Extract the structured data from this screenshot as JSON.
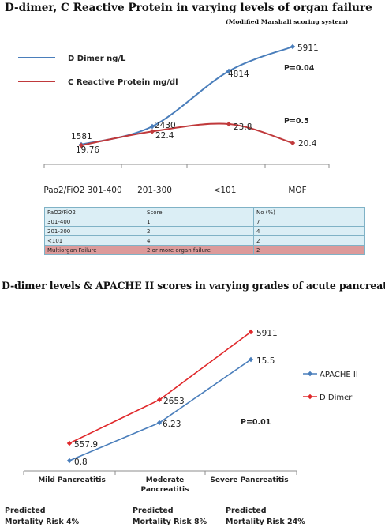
{
  "chart1": {
    "title": "D-dimer, C Reactive Protein in varying levels of organ failure",
    "subtitle": "(Modified Marshall scoring system)",
    "categories": [
      "Pao2/FiO2 301-400",
      "201-300",
      "<101",
      "MOF"
    ],
    "series": [
      {
        "name": "D Dimer ng/L",
        "color": "#4a7ebb",
        "values": [
          1581,
          2430,
          4814,
          5911
        ],
        "labels": [
          "1581",
          "2430",
          "4814",
          "5911"
        ]
      },
      {
        "name": "C Reactive Protein mg/dl",
        "color": "#c0393b",
        "values": [
          19.76,
          22.4,
          23.8,
          20.4
        ],
        "labels": [
          "19.76",
          "22.4",
          "23.8",
          "20.4"
        ]
      }
    ],
    "p_values": [
      "P=0.04",
      "P=0.5"
    ]
  },
  "table": {
    "headers": [
      "PaO2/FiO2",
      "Score",
      "No (%)"
    ],
    "rows": [
      [
        "301-400",
        "1",
        "7"
      ],
      [
        "201-300",
        "2",
        "4"
      ],
      [
        "<101",
        "4",
        "2"
      ],
      [
        "Multiorgan Failure",
        "2 or more organ failure",
        "2"
      ]
    ],
    "highlight_color": "#dc9a9a"
  },
  "chart2": {
    "title": "D-dimer levels & APACHE II scores in varying grades of acute pancreatitis",
    "categories": [
      [
        "Mild Pancreatitis"
      ],
      [
        "Moderate",
        "Pancreatitis"
      ],
      [
        "Severe Pancreatitis"
      ]
    ],
    "series": [
      {
        "name": "APACHE II",
        "color": "#4a7ebb",
        "values": [
          0.8,
          6.23,
          15.5
        ],
        "labels": [
          "0.8",
          "6.23",
          "15.5"
        ]
      },
      {
        "name": "D Dimer",
        "color": "#e0282b",
        "values": [
          557.9,
          2653,
          5911
        ],
        "labels": [
          "557.9",
          "2653",
          "5911"
        ]
      }
    ],
    "p_value": "P=0.01",
    "mortality": [
      [
        "Predicted",
        "Mortality  Risk 4%"
      ],
      [
        "Predicted",
        "Mortality Risk 8%"
      ],
      [
        "Predicted",
        "Mortality Risk 24%"
      ]
    ]
  },
  "chart_data": [
    {
      "type": "line",
      "title": "D-dimer, C Reactive Protein in varying levels of organ failure",
      "subtitle": "(Modified Marshall scoring system)",
      "categories": [
        "Pao2/FiO2 301-400",
        "201-300",
        "<101",
        "MOF"
      ],
      "series": [
        {
          "name": "D Dimer ng/L",
          "values": [
            1581,
            2430,
            4814,
            5911
          ]
        },
        {
          "name": "C Reactive Protein mg/dl",
          "values": [
            19.76,
            22.4,
            23.8,
            20.4
          ]
        }
      ],
      "annotations": [
        "P=0.04",
        "P=0.5"
      ],
      "legend": "top-left"
    },
    {
      "type": "table",
      "headers": [
        "PaO2/FiO2",
        "Score",
        "No (%)"
      ],
      "rows": [
        [
          "301-400",
          "1",
          "7"
        ],
        [
          "201-300",
          "2",
          "4"
        ],
        [
          "<101",
          "4",
          "2"
        ],
        [
          "Multiorgan Failure",
          "2 or more organ failure",
          "2"
        ]
      ]
    },
    {
      "type": "line",
      "title": "D-dimer levels & APACHE II scores in varying grades of acute pancreatitis",
      "categories": [
        "Mild Pancreatitis",
        "Moderate Pancreatitis",
        "Severe Pancreatitis"
      ],
      "series": [
        {
          "name": "APACHE II",
          "values": [
            0.8,
            6.23,
            15.5
          ]
        },
        {
          "name": "D Dimer",
          "values": [
            557.9,
            2653,
            5911
          ]
        }
      ],
      "annotations": [
        "P=0.01",
        "Predicted Mortality Risk 4%",
        "Predicted Mortality Risk 8%",
        "Predicted Mortality Risk 24%"
      ],
      "legend": "right"
    }
  ]
}
